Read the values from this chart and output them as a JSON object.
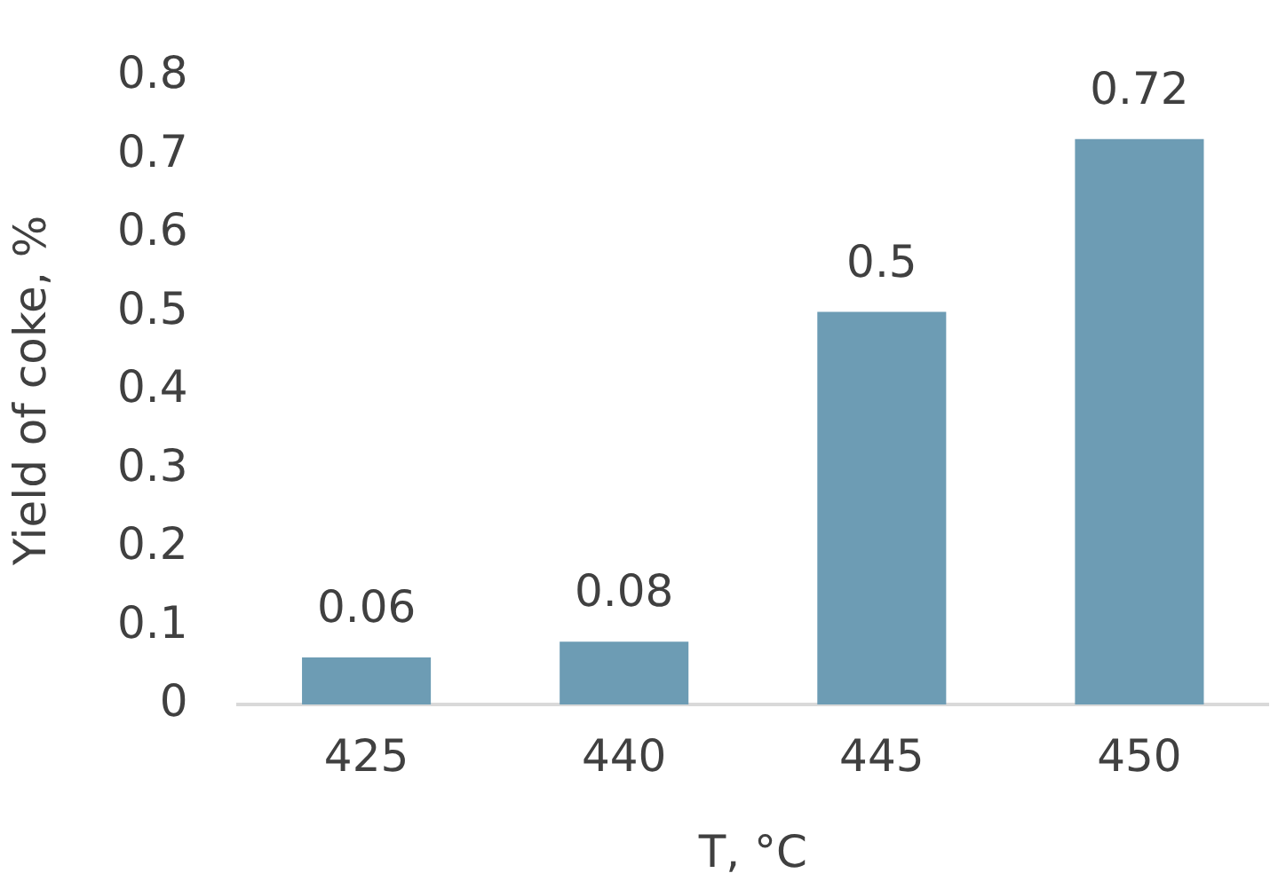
{
  "chart_data": {
    "type": "bar",
    "xlabel": "T, °C",
    "ylabel": "Yield of coke, %",
    "categories": [
      "425",
      "440",
      "445",
      "450"
    ],
    "values": [
      0.06,
      0.08,
      0.5,
      0.72
    ],
    "color": "#6d9cb4",
    "ylim": [
      0,
      0.8
    ],
    "yticks": [
      0,
      0.1,
      0.2,
      0.3,
      0.4,
      0.5,
      0.6,
      0.7,
      0.8
    ],
    "data_labels": true,
    "grid": false,
    "legend": false
  }
}
